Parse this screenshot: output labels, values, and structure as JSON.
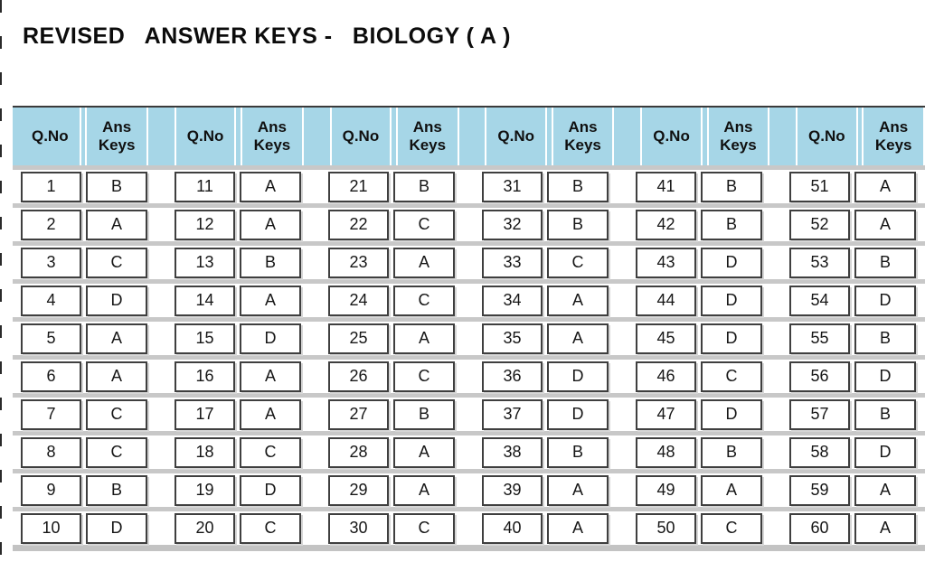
{
  "title": "REVISED   ANSWER KEYS -   BIOLOGY ( A )",
  "table": {
    "header": {
      "qno": "Q.No",
      "ans": "Ans Keys"
    },
    "groups": 6,
    "rows_per_group": 10,
    "answer_keys": [
      {
        "q": "1",
        "key": "B"
      },
      {
        "q": "2",
        "key": "A"
      },
      {
        "q": "3",
        "key": "C"
      },
      {
        "q": "4",
        "key": "D"
      },
      {
        "q": "5",
        "key": "A"
      },
      {
        "q": "6",
        "key": "A"
      },
      {
        "q": "7",
        "key": "C"
      },
      {
        "q": "8",
        "key": "C"
      },
      {
        "q": "9",
        "key": "B"
      },
      {
        "q": "10",
        "key": "D"
      },
      {
        "q": "11",
        "key": "A"
      },
      {
        "q": "12",
        "key": "A"
      },
      {
        "q": "13",
        "key": "B"
      },
      {
        "q": "14",
        "key": "A"
      },
      {
        "q": "15",
        "key": "D"
      },
      {
        "q": "16",
        "key": "A"
      },
      {
        "q": "17",
        "key": "A"
      },
      {
        "q": "18",
        "key": "C"
      },
      {
        "q": "19",
        "key": "D"
      },
      {
        "q": "20",
        "key": "C"
      },
      {
        "q": "21",
        "key": "B"
      },
      {
        "q": "22",
        "key": "C"
      },
      {
        "q": "23",
        "key": "A"
      },
      {
        "q": "24",
        "key": "C"
      },
      {
        "q": "25",
        "key": "A"
      },
      {
        "q": "26",
        "key": "C"
      },
      {
        "q": "27",
        "key": "B"
      },
      {
        "q": "28",
        "key": "A"
      },
      {
        "q": "29",
        "key": "A"
      },
      {
        "q": "30",
        "key": "C"
      },
      {
        "q": "31",
        "key": "B"
      },
      {
        "q": "32",
        "key": "B"
      },
      {
        "q": "33",
        "key": "C"
      },
      {
        "q": "34",
        "key": "A"
      },
      {
        "q": "35",
        "key": "A"
      },
      {
        "q": "36",
        "key": "D"
      },
      {
        "q": "37",
        "key": "D"
      },
      {
        "q": "38",
        "key": "B"
      },
      {
        "q": "39",
        "key": "A"
      },
      {
        "q": "40",
        "key": "A"
      },
      {
        "q": "41",
        "key": "B"
      },
      {
        "q": "42",
        "key": "B"
      },
      {
        "q": "43",
        "key": "D"
      },
      {
        "q": "44",
        "key": "D"
      },
      {
        "q": "45",
        "key": "D"
      },
      {
        "q": "46",
        "key": "C"
      },
      {
        "q": "47",
        "key": "D"
      },
      {
        "q": "48",
        "key": "B"
      },
      {
        "q": "49",
        "key": "A"
      },
      {
        "q": "50",
        "key": "C"
      },
      {
        "q": "51",
        "key": "A"
      },
      {
        "q": "52",
        "key": "A"
      },
      {
        "q": "53",
        "key": "B"
      },
      {
        "q": "54",
        "key": "D"
      },
      {
        "q": "55",
        "key": "B"
      },
      {
        "q": "56",
        "key": "D"
      },
      {
        "q": "57",
        "key": "B"
      },
      {
        "q": "58",
        "key": "D"
      },
      {
        "q": "59",
        "key": "A"
      },
      {
        "q": "60",
        "key": "A"
      }
    ]
  },
  "colors": {
    "header_bg": "#a6d6e7",
    "row_strip": "#c8c8c8",
    "cell_border": "#3f3f3f",
    "text": "#161616"
  }
}
